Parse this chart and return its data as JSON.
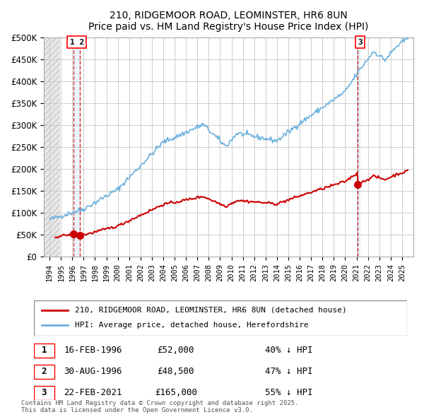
{
  "title": "210, RIDGEMOOR ROAD, LEOMINSTER, HR6 8UN",
  "subtitle": "Price paid vs. HM Land Registry's House Price Index (HPI)",
  "legend_line1": "210, RIDGEMOOR ROAD, LEOMINSTER, HR6 8UN (detached house)",
  "legend_line2": "HPI: Average price, detached house, Herefordshire",
  "transactions": [
    {
      "num": 1,
      "date": "16-FEB-1996",
      "price": 52000,
      "pct": "40%",
      "x_year": 1996.12
    },
    {
      "num": 2,
      "date": "30-AUG-1996",
      "price": 48500,
      "pct": "47%",
      "x_year": 1996.66
    },
    {
      "num": 3,
      "date": "22-FEB-2021",
      "price": 165000,
      "pct": "55%",
      "x_year": 2021.12
    }
  ],
  "footnote": "Contains HM Land Registry data © Crown copyright and database right 2025.\nThis data is licensed under the Open Government Licence v3.0.",
  "hpi_color": "#6ab0de",
  "price_color": "#cc0000",
  "dashed_line_color": "#cc0000",
  "background_hatch_color": "#e8e8e8",
  "ylim": [
    0,
    500000
  ],
  "yticks": [
    0,
    50000,
    100000,
    150000,
    200000,
    250000,
    300000,
    350000,
    400000,
    450000,
    500000
  ],
  "xlim_start": 1993.5,
  "xlim_end": 2026.0
}
